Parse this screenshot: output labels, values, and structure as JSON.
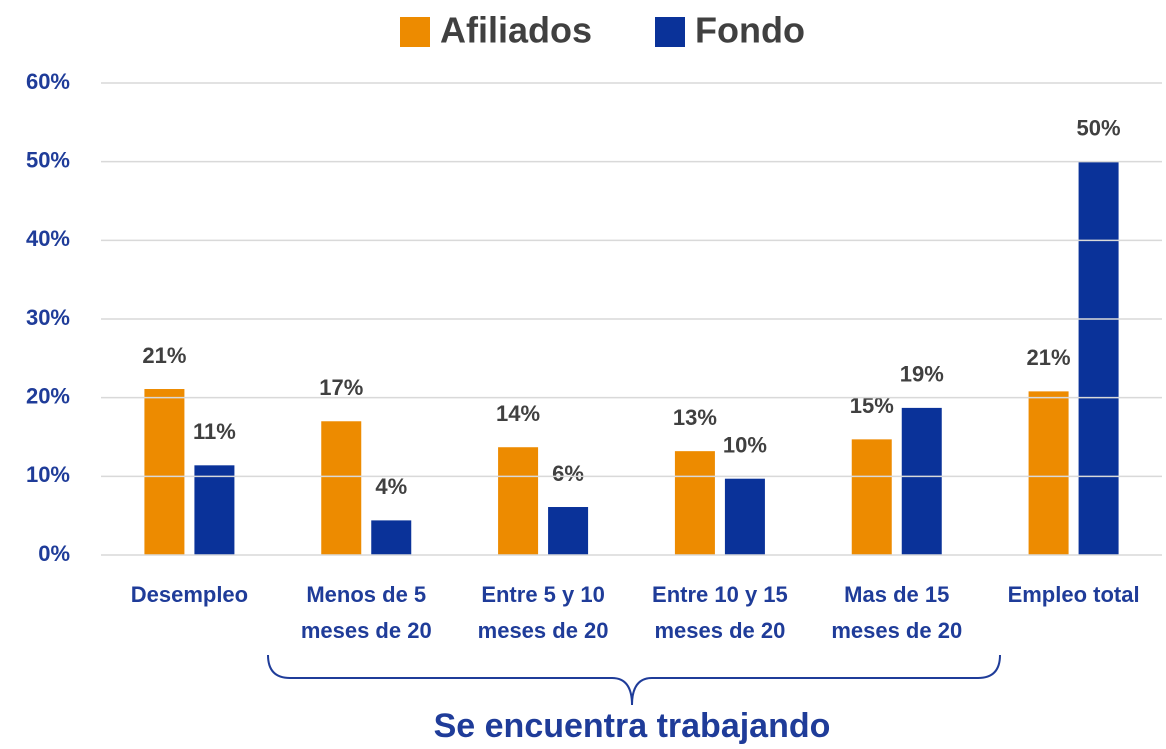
{
  "chart_data": {
    "type": "bar",
    "categories": [
      [
        "Desempleo"
      ],
      [
        "Menos de 5",
        "meses de 20"
      ],
      [
        "Entre 5 y 10",
        "meses de 20"
      ],
      [
        "Entre 10 y 15",
        "meses de 20"
      ],
      [
        "Mas de 15",
        "meses de 20"
      ],
      [
        "Empleo total"
      ]
    ],
    "series": [
      {
        "name": "Afiliados",
        "color": "#ED8B00",
        "values": [
          21.1,
          17.0,
          13.7,
          13.2,
          14.7,
          20.8
        ],
        "value_labels": [
          "21%",
          "17%",
          "14%",
          "13%",
          "15%",
          "21%"
        ]
      },
      {
        "name": "Fondo",
        "color": "#0A3299",
        "values": [
          11.4,
          4.4,
          6.1,
          9.7,
          18.7,
          50.0
        ],
        "value_labels": [
          "11%",
          "4%",
          "6%",
          "10%",
          "19%",
          "50%"
        ]
      }
    ],
    "ylim": [
      0,
      60
    ],
    "yticks": [
      {
        "value": 0,
        "label": "0%"
      },
      {
        "value": 10,
        "label": "10%"
      },
      {
        "value": 20,
        "label": "20%"
      },
      {
        "value": 30,
        "label": "30%"
      },
      {
        "value": 40,
        "label": "40%"
      },
      {
        "value": 50,
        "label": "50%"
      },
      {
        "value": 60,
        "label": "60%"
      }
    ],
    "grid": true,
    "legend": "top",
    "annotation": "Se encuentra trabajando"
  }
}
